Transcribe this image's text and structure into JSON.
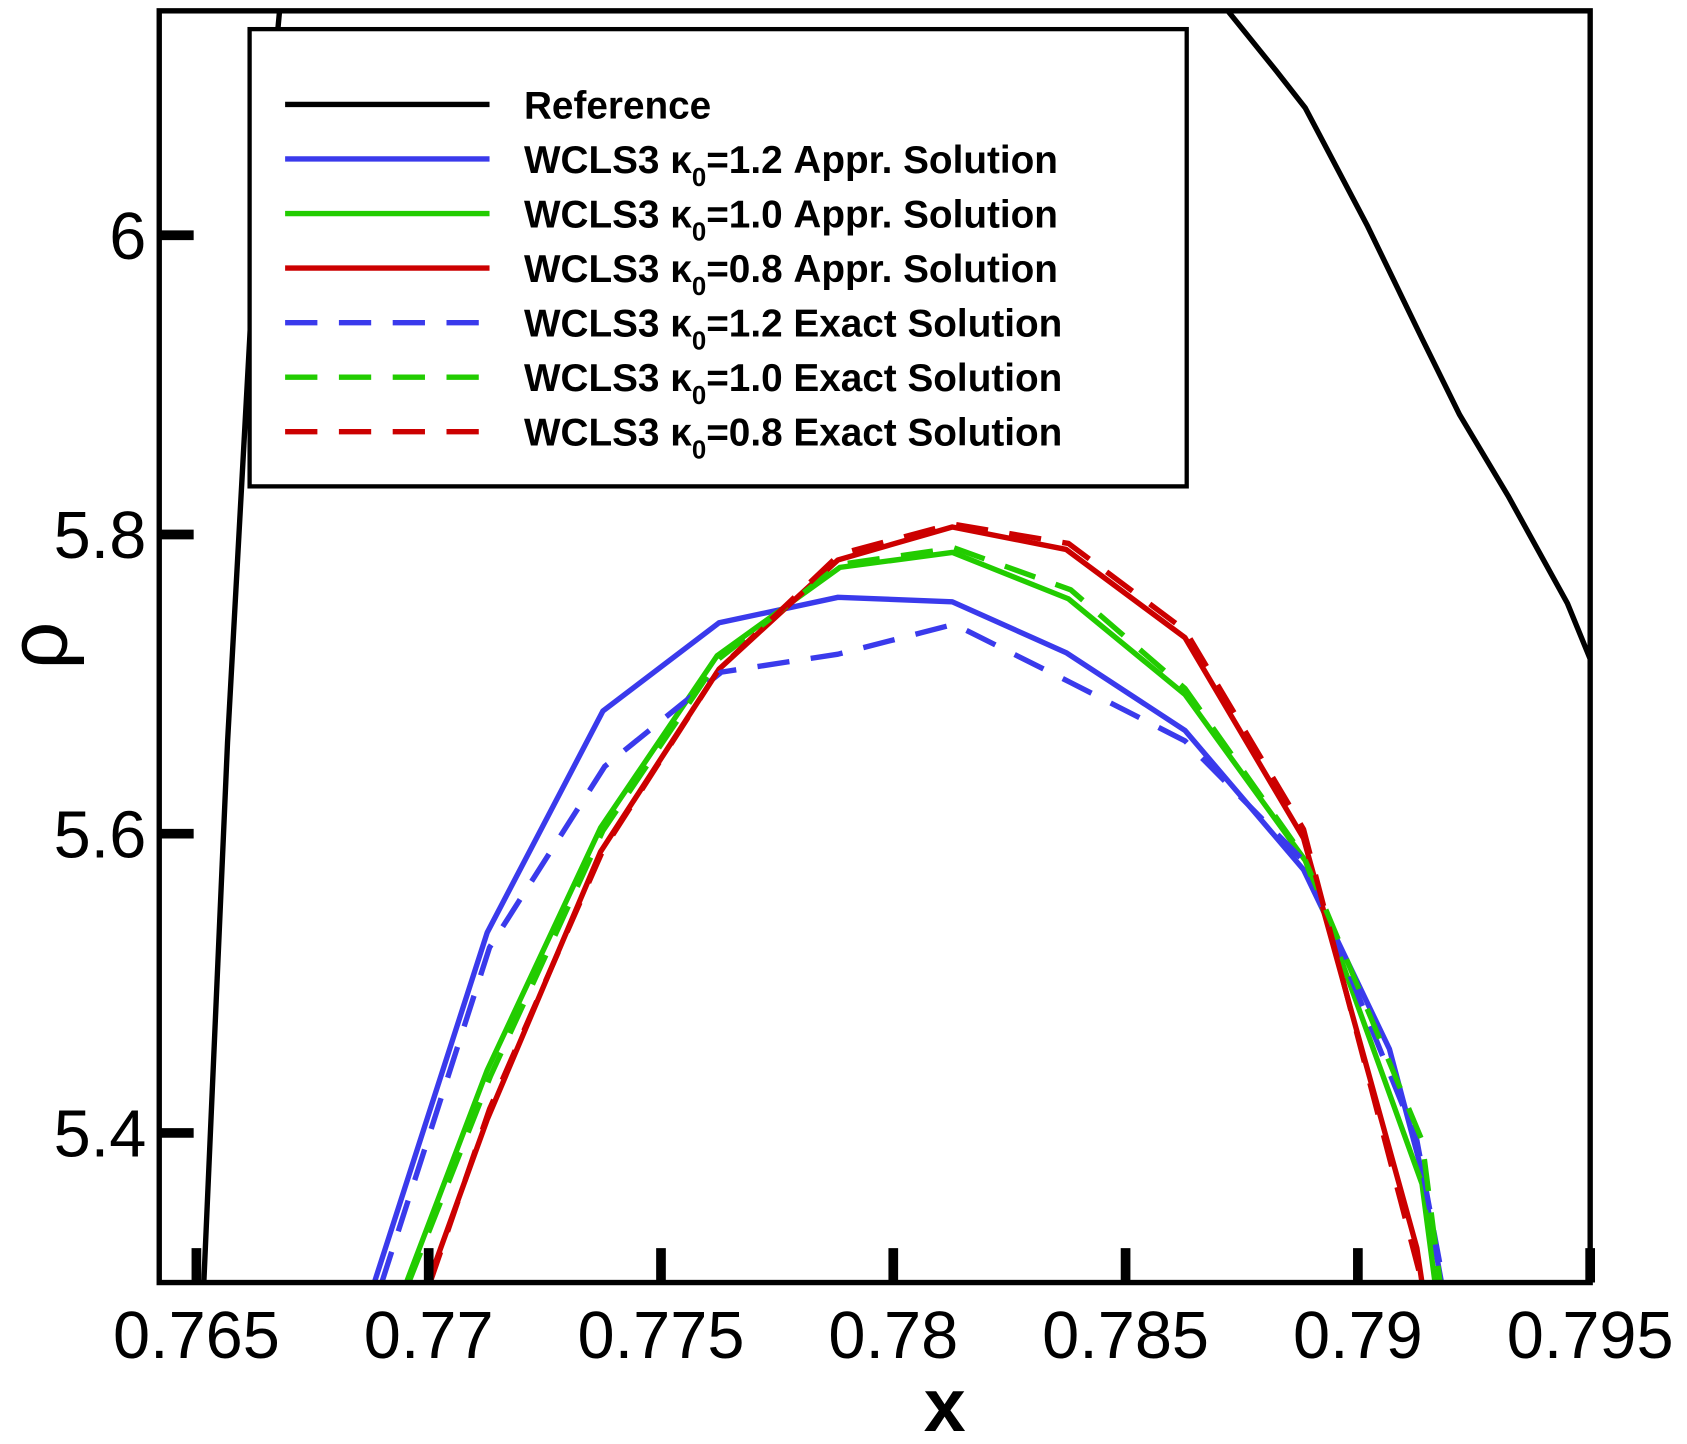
{
  "chart_data": {
    "type": "line",
    "xlabel": "x",
    "ylabel": "ρ",
    "xlim": [
      0.7642,
      0.795
    ],
    "ylim": [
      5.3,
      6.15
    ],
    "xticks": [
      0.765,
      0.77,
      0.775,
      0.78,
      0.785,
      0.79,
      0.795
    ],
    "yticks": [
      5.4,
      5.6,
      5.8,
      6
    ],
    "legend": "upper left",
    "series": [
      {
        "name": "Reference",
        "color": "#000000",
        "dashed": false,
        "x": [
          0.76516,
          0.76567,
          0.76616,
          0.76679,
          0.787,
          0.7872,
          0.78824,
          0.78887,
          0.79021,
          0.79138,
          0.79219,
          0.79323,
          0.79451,
          0.79505
        ],
        "values": [
          5.3,
          5.661,
          5.938,
          6.15,
          null,
          6.15,
          6.11,
          6.085,
          6.006,
          5.931,
          5.88,
          5.826,
          5.754,
          5.713
        ]
      },
      {
        "name": "WCLS3 κ0=1.2 Appr. Solution",
        "color": "#3a3aec",
        "dashed": false,
        "x": [
          0.76883,
          0.77126,
          0.77375,
          0.77625,
          0.77881,
          0.78127,
          0.78372,
          0.78628,
          0.78883,
          0.79068,
          0.79133,
          0.7918
        ],
        "values": [
          5.3,
          5.534,
          5.682,
          5.741,
          5.758,
          5.755,
          5.721,
          5.669,
          5.576,
          5.456,
          5.38,
          5.3
        ]
      },
      {
        "name": "WCLS3 κ0=1.0 Appr. Solution",
        "color": "#22cc00",
        "dashed": false,
        "x": [
          0.76952,
          0.77126,
          0.7737,
          0.77621,
          0.77885,
          0.78127,
          0.78377,
          0.78628,
          0.78887,
          0.79138,
          0.79166
        ],
        "values": [
          5.3,
          5.442,
          5.604,
          5.719,
          5.778,
          5.788,
          5.757,
          5.693,
          5.582,
          5.366,
          5.3
        ]
      },
      {
        "name": "WCLS3 κ0=0.8 Appr. Solution",
        "color": "#cc0000",
        "dashed": false,
        "x": [
          0.76999,
          0.77126,
          0.7737,
          0.77625,
          0.77881,
          0.78127,
          0.78372,
          0.78628,
          0.78883,
          0.79127,
          0.79138
        ],
        "values": [
          5.3,
          5.409,
          5.588,
          5.71,
          5.783,
          5.805,
          5.79,
          5.731,
          5.597,
          5.323,
          5.3
        ]
      },
      {
        "name": "WCLS3 κ0=1.2 Exact Solution",
        "color": "#3a3aec",
        "dashed": true,
        "x": [
          0.76899,
          0.77131,
          0.77379,
          0.7763,
          0.77881,
          0.78131,
          0.78382,
          0.78628,
          0.78883,
          0.79127,
          0.79184
        ],
        "values": [
          5.3,
          5.524,
          5.645,
          5.708,
          5.72,
          5.74,
          5.701,
          5.662,
          5.582,
          5.395,
          5.3
        ]
      },
      {
        "name": "WCLS3 κ0=1.0 Exact Solution",
        "color": "#22cc00",
        "dashed": true,
        "x": [
          0.76957,
          0.77133,
          0.77375,
          0.77625,
          0.77885,
          0.78131,
          0.78382,
          0.78628,
          0.78883,
          0.79138,
          0.79177
        ],
        "values": [
          5.3,
          5.438,
          5.602,
          5.717,
          5.78,
          5.791,
          5.763,
          5.697,
          5.585,
          5.395,
          5.3
        ]
      },
      {
        "name": "WCLS3 κ0=0.8 Exact Solution",
        "color": "#cc0000",
        "dashed": true,
        "x": [
          0.77003,
          0.77131,
          0.77375,
          0.77625,
          0.77885,
          0.78127,
          0.78377,
          0.78628,
          0.78883,
          0.79138
        ],
        "values": [
          5.3,
          5.416,
          5.589,
          5.71,
          5.787,
          5.807,
          5.794,
          5.736,
          5.603,
          5.3
        ]
      }
    ]
  }
}
